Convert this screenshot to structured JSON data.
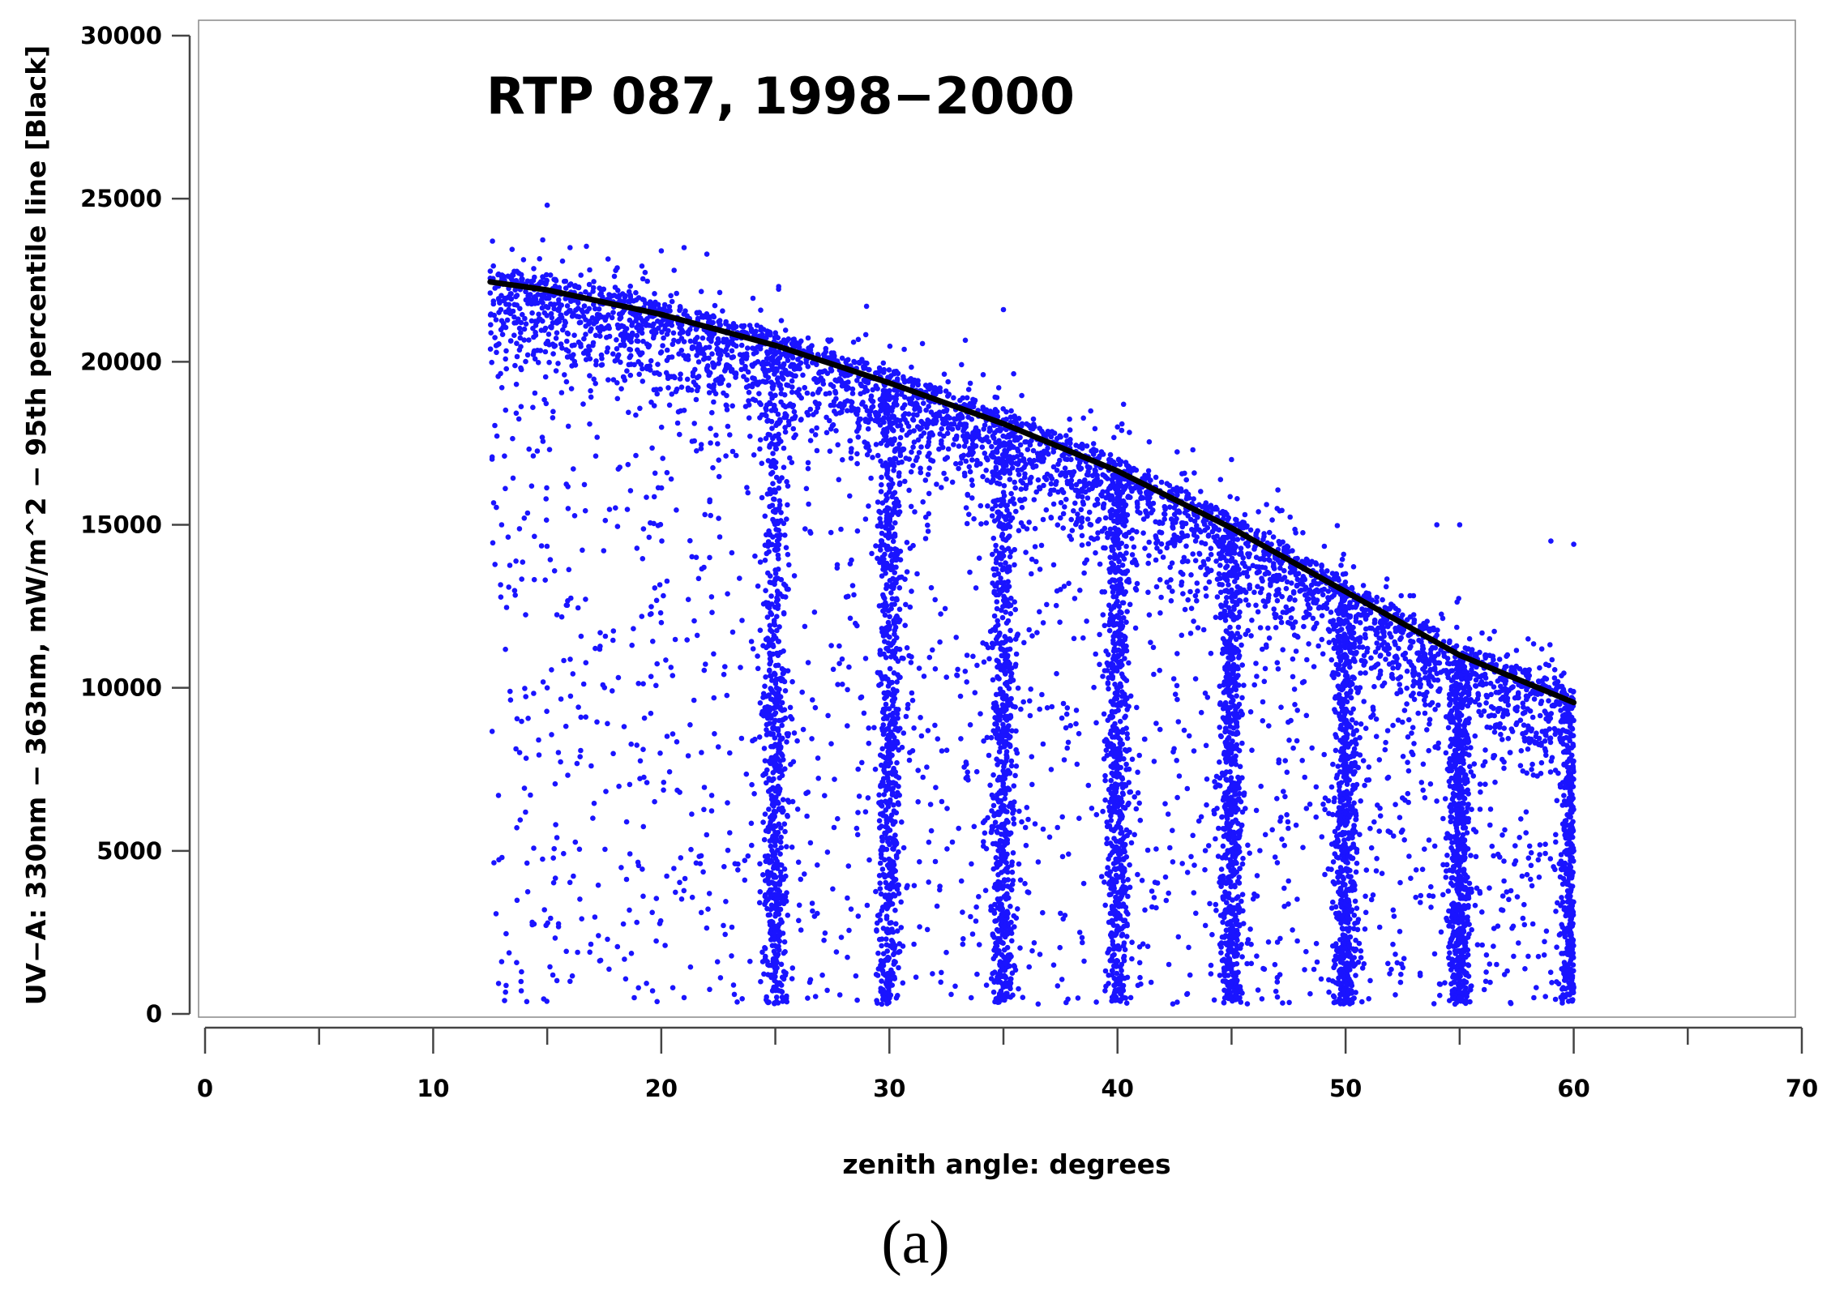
{
  "chart_data": {
    "type": "scatter",
    "title": "RTP 087, 1998−2000",
    "xlabel": "zenith angle: degrees",
    "ylabel": "UV−A: 330nm − 363nm, mW/m^2 − 95th percentile line [Black]",
    "xlim": [
      0,
      70
    ],
    "ylim": [
      0,
      30000
    ],
    "x_ticks": [
      0,
      10,
      20,
      30,
      40,
      50,
      60,
      70
    ],
    "x_tick_labels": [
      "0",
      "10",
      "20",
      "30",
      "40",
      "50",
      "60",
      "70"
    ],
    "y_ticks": [
      0,
      5000,
      10000,
      15000,
      20000,
      25000,
      30000
    ],
    "y_tick_labels": [
      "0",
      "5000",
      "10000",
      "15000",
      "20000",
      "25000",
      "30000"
    ],
    "grid": false,
    "series": [
      {
        "kind": "scatter",
        "color": "#1a14ff",
        "x_range": [
          12.5,
          60
        ],
        "approx_point_count": 9000,
        "dense_columns_at_deg": [
          25,
          30,
          35,
          40,
          45,
          50,
          55,
          60
        ],
        "sample_points": [
          [
            12.6,
            23700
          ],
          [
            15,
            24800
          ],
          [
            13,
            22500
          ],
          [
            14,
            21000
          ],
          [
            16,
            23500
          ],
          [
            18,
            22800
          ],
          [
            20,
            23400
          ],
          [
            21,
            23500
          ],
          [
            22,
            23300
          ],
          [
            17,
            20500
          ],
          [
            19,
            20000
          ],
          [
            22,
            19800
          ],
          [
            24,
            19500
          ],
          [
            25,
            18500
          ],
          [
            25,
            16000
          ],
          [
            25,
            9000
          ],
          [
            25,
            3000
          ],
          [
            27,
            19500
          ],
          [
            29,
            21700
          ],
          [
            30,
            18000
          ],
          [
            30,
            15000
          ],
          [
            30,
            8000
          ],
          [
            30,
            2500
          ],
          [
            33,
            18000
          ],
          [
            35,
            21600
          ],
          [
            35,
            15000
          ],
          [
            35,
            5000
          ],
          [
            35,
            500
          ],
          [
            38,
            16500
          ],
          [
            40,
            18000
          ],
          [
            40,
            14000
          ],
          [
            40,
            8000
          ],
          [
            40,
            2000
          ],
          [
            43,
            15500
          ],
          [
            45,
            17000
          ],
          [
            45,
            13000
          ],
          [
            45,
            7000
          ],
          [
            45,
            1000
          ],
          [
            47,
            15500
          ],
          [
            50,
            13500
          ],
          [
            50,
            11000
          ],
          [
            50,
            5000
          ],
          [
            50,
            500
          ],
          [
            53,
            12000
          ],
          [
            54,
            15000
          ],
          [
            55,
            15000
          ],
          [
            55,
            9500
          ],
          [
            55,
            4000
          ],
          [
            55,
            500
          ],
          [
            58,
            11500
          ],
          [
            59,
            14500
          ],
          [
            60,
            14400
          ],
          [
            60,
            9000
          ],
          [
            60,
            5000
          ],
          [
            60,
            800
          ],
          [
            13,
            15000
          ],
          [
            15,
            10000
          ],
          [
            17,
            6000
          ],
          [
            19,
            800
          ],
          [
            21,
            500
          ],
          [
            13,
            1600
          ],
          [
            16,
            1000
          ],
          [
            20,
            12000
          ],
          [
            23,
            8000
          ]
        ]
      },
      {
        "name": "95th percentile line",
        "kind": "line",
        "color": "#000000",
        "x": [
          12.5,
          15,
          20,
          25,
          30,
          35,
          40,
          45,
          50,
          55,
          60
        ],
        "y": [
          22450,
          22200,
          21450,
          20500,
          19350,
          18100,
          16650,
          14900,
          12950,
          11000,
          9550
        ]
      }
    ]
  },
  "caption": "(a)"
}
